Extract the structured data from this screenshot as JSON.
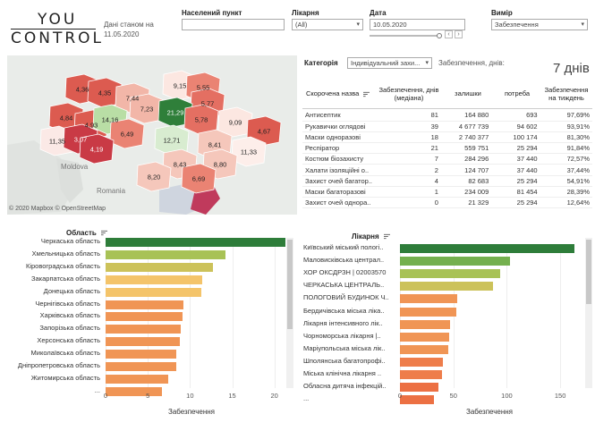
{
  "logo": {
    "line1": "YOU",
    "line2": "CONTROL"
  },
  "date_note": {
    "line1": "Дані станом на",
    "line2": "11.05.2020"
  },
  "filters": {
    "settlement": {
      "label": "Населений пункт",
      "value": ""
    },
    "hospital": {
      "label": "Лікарня",
      "value": "(All)"
    },
    "date": {
      "label": "Дата",
      "value": "10.05.2020"
    },
    "measure": {
      "label": "Вимір",
      "value": "Забезпечення"
    }
  },
  "map": {
    "copyright": "© 2020 Mapbox  © OpenStreetMap",
    "places": [
      "Moldova",
      "Romania"
    ],
    "regions": [
      {
        "v": "4,36",
        "c": "#dc5b50"
      },
      {
        "v": "4,35",
        "c": "#dc5b50"
      },
      {
        "v": "7,44",
        "c": "#f2b6a8"
      },
      {
        "v": "9,15",
        "c": "#fce7e1"
      },
      {
        "v": "5,55",
        "c": "#ea8373"
      },
      {
        "v": "5,77",
        "c": "#e46f62"
      },
      {
        "v": "4,84",
        "c": "#dc5b50"
      },
      {
        "v": "4,93",
        "c": "#dc5b50"
      },
      {
        "v": "14,16",
        "c": "#b9dea5"
      },
      {
        "v": "7,23",
        "c": "#f2b6a8"
      },
      {
        "v": "21,29",
        "c": "#2f7f3a"
      },
      {
        "v": "5,78",
        "c": "#e46f62"
      },
      {
        "v": "9,09",
        "c": "#fce7e1"
      },
      {
        "v": "4,67",
        "c": "#dc5b50"
      },
      {
        "v": "11,35",
        "c": "#fbe9e6"
      },
      {
        "v": "3,07",
        "c": "#c93a45"
      },
      {
        "v": "6,49",
        "c": "#ea8373"
      },
      {
        "v": "12,71",
        "c": "#d8ecd0"
      },
      {
        "v": "4,19",
        "c": "#c93a45"
      },
      {
        "v": "8,41",
        "c": "#f5c7bb"
      },
      {
        "v": "11,33",
        "c": "#fdeeea"
      },
      {
        "v": "8,43",
        "c": "#f5c7bb"
      },
      {
        "v": "8,20",
        "c": "#f5c7bb"
      },
      {
        "v": "8,80",
        "c": "#f5c7bb"
      },
      {
        "v": "6,69",
        "c": "#ea8373"
      }
    ]
  },
  "category": {
    "label": "Категорія",
    "value": "Індивідуальний захи...",
    "days_label": "Забезпечення, днів:",
    "days_value": "7 днів"
  },
  "table": {
    "headers": [
      "Скорочена назва",
      "Забезпечення, днів (медіана)",
      "залишки",
      "потреба",
      "Забезпечення на тиждень"
    ],
    "rows": [
      [
        "Антисептик",
        "81",
        "164 880",
        "693",
        "97,69%"
      ],
      [
        "Рукавички оглядові",
        "39",
        "4 677 739",
        "94 602",
        "93,91%"
      ],
      [
        "Маски одноразові",
        "18",
        "2 740 377",
        "100 174",
        "81,30%"
      ],
      [
        "Респіратор",
        "21",
        "559 751",
        "25 294",
        "91,84%"
      ],
      [
        "Костюм біозахисту",
        "7",
        "284 296",
        "37 440",
        "72,57%"
      ],
      [
        "Халати ізоляційні о..",
        "2",
        "124 707",
        "37 440",
        "37,44%"
      ],
      [
        "Захист очей багатор..",
        "4",
        "82 683",
        "25 294",
        "54,91%"
      ],
      [
        "Маски багаторазові",
        "1",
        "234 009",
        "81 454",
        "28,39%"
      ],
      [
        "Захист очей однора..",
        "0",
        "21 329",
        "25 294",
        "12,64%"
      ]
    ]
  },
  "chart_regions": {
    "title": "Область",
    "xlabel": "Забезпечення",
    "ticks": [
      "0",
      "5",
      "10",
      "15",
      "20"
    ]
  },
  "chart_hospitals": {
    "title": "Лікарня",
    "xlabel": "Забезпечення",
    "ticks": [
      "0",
      "50",
      "100",
      "150"
    ]
  },
  "chart_data": [
    {
      "type": "bar",
      "orientation": "horizontal",
      "title": "Область",
      "xlabel": "Забезпечення",
      "xlim": [
        0,
        23
      ],
      "categories": [
        "Черкаська область",
        "Хмельницька область",
        "Кіровоградська область",
        "Закарпатська область",
        "Донецька область",
        "Чернігівська область",
        "Харківська область",
        "Запорізька область",
        "Херсонська область",
        "Миколаївська область",
        "Дніпропетровська область",
        "Житомирська область",
        "..."
      ],
      "values": [
        21.3,
        14.2,
        12.7,
        11.4,
        11.3,
        9.2,
        9.1,
        8.9,
        8.8,
        8.4,
        8.4,
        7.4,
        6.7
      ],
      "colors": [
        "#2e7d3a",
        "#a8c256",
        "#ccc25a",
        "#f4c46a",
        "#f4c46a",
        "#f09555",
        "#f09555",
        "#f09555",
        "#f09555",
        "#f09555",
        "#f09555",
        "#f09555",
        "#f09555"
      ]
    },
    {
      "type": "bar",
      "orientation": "horizontal",
      "title": "Лікарня",
      "xlabel": "Забезпечення",
      "xlim": [
        0,
        175
      ],
      "categories": [
        "Київський міський пологі..",
        "Маловисківська централ..",
        "ХОР ОКСДРЗН | 02003570",
        "ЧЕРКАСЬКА ЦЕНТРАЛЬ..",
        "ПОЛОГОВИЙ БУДИНОК Ч..",
        "Бердичівська міська ліка..",
        "Лікарня інтенсивного лік..",
        "Чорноморська лікарня |..",
        "Маріупольська міська лік..",
        "Шполянська багатопрофі..",
        "Міська клінічна лікарня ..",
        "Обласна дитяча інфекцій..",
        "..."
      ],
      "values": [
        163,
        103,
        94,
        87,
        54,
        53,
        47,
        46,
        45,
        40,
        39,
        36,
        32
      ],
      "colors": [
        "#2e7d3a",
        "#74b04e",
        "#a8c256",
        "#ccc25a",
        "#f09555",
        "#f09555",
        "#f09555",
        "#f09555",
        "#f09555",
        "#ee7d4b",
        "#ee7d4b",
        "#ec7043",
        "#ec7043"
      ]
    }
  ]
}
